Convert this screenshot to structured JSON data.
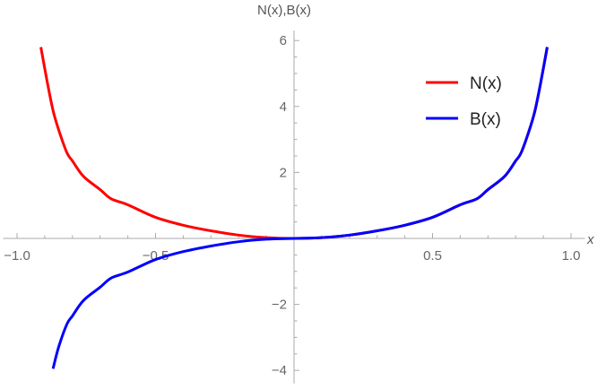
{
  "chart_data": {
    "type": "line",
    "title": "",
    "xlabel": "x",
    "ylabel": "N(x),B(x)",
    "xlim": [
      -1.05,
      1.05
    ],
    "ylim": [
      -4.4,
      6.3
    ],
    "x_ticks": [
      -1.0,
      -0.5,
      0.5,
      1.0
    ],
    "x_tick_labels": [
      "−1.0",
      "−0.5",
      "0.5",
      "1.0"
    ],
    "y_ticks": [
      -4,
      -2,
      2,
      4,
      6
    ],
    "y_tick_labels": [
      "−4",
      "−2",
      "2",
      "4",
      "6"
    ],
    "grid": false,
    "legend_position": "top-right",
    "series": [
      {
        "name": "N(x)",
        "color": "#ff0000",
        "x": [
          -0.914,
          -0.89,
          -0.87,
          -0.85,
          -0.82,
          -0.8,
          -0.76,
          -0.7,
          -0.66,
          -0.6,
          -0.5,
          -0.4,
          -0.3,
          -0.2,
          -0.1,
          0,
          0.1,
          0.2,
          0.3,
          0.4,
          0.5,
          0.6,
          0.66,
          0.7,
          0.76,
          0.8,
          0.82,
          0.85,
          0.87,
          0.89,
          0.914
        ],
        "y": [
          5.8,
          4.7,
          3.88,
          3.3,
          2.6,
          2.35,
          1.88,
          1.48,
          1.2,
          1.02,
          0.64,
          0.4,
          0.23,
          0.1,
          0.025,
          0,
          0.025,
          0.1,
          0.23,
          0.4,
          0.64,
          1.02,
          1.2,
          1.48,
          1.88,
          2.35,
          2.6,
          3.3,
          3.88,
          4.7,
          5.8
        ]
      },
      {
        "name": "B(x)",
        "color": "#0000ff",
        "x": [
          -0.87,
          -0.85,
          -0.82,
          -0.8,
          -0.76,
          -0.7,
          -0.66,
          -0.6,
          -0.5,
          -0.4,
          -0.3,
          -0.2,
          -0.1,
          0,
          0.1,
          0.2,
          0.3,
          0.4,
          0.5,
          0.6,
          0.66,
          0.7,
          0.76,
          0.8,
          0.82,
          0.85,
          0.87,
          0.89,
          0.914
        ],
        "y": [
          -3.95,
          -3.3,
          -2.6,
          -2.35,
          -1.88,
          -1.48,
          -1.2,
          -1.02,
          -0.64,
          -0.4,
          -0.23,
          -0.1,
          -0.025,
          0,
          0.025,
          0.1,
          0.23,
          0.4,
          0.64,
          1.02,
          1.2,
          1.48,
          1.88,
          2.35,
          2.6,
          3.3,
          3.88,
          4.7,
          5.8
        ]
      }
    ]
  }
}
